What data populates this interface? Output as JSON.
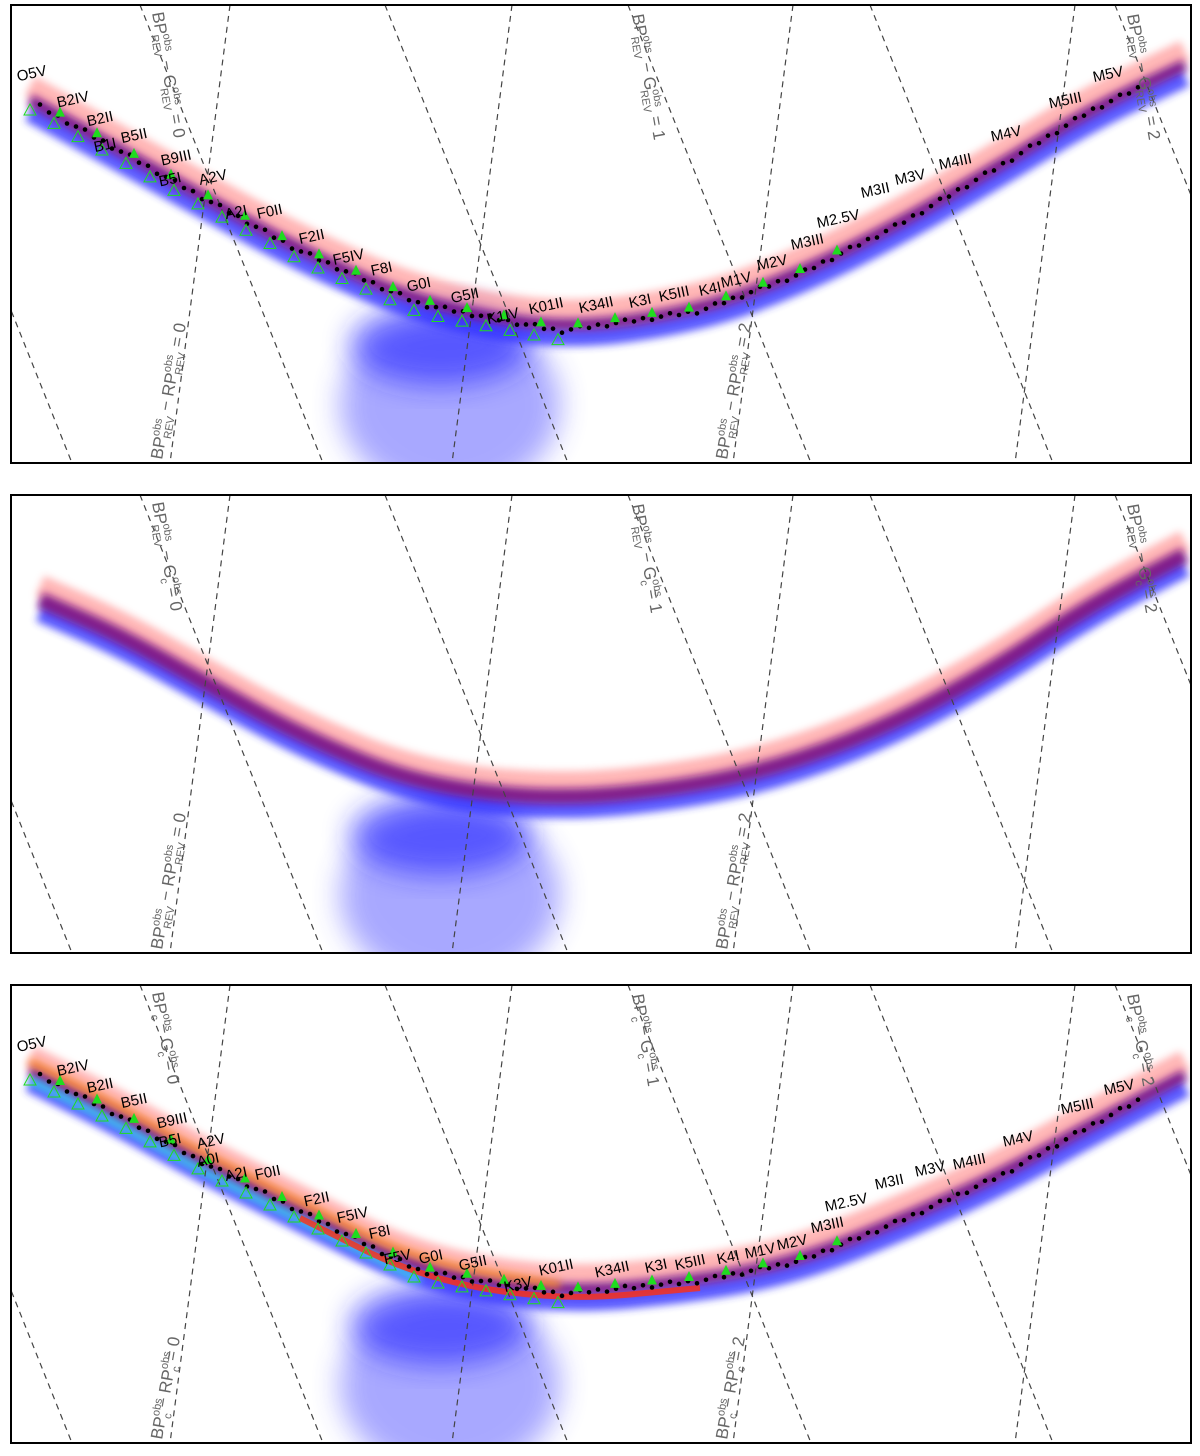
{
  "chart_data": [
    {
      "type": "scatter",
      "panel": "top",
      "title": "",
      "series": [
        {
          "name": "sources (red)",
          "color": "#ff6f6f"
        },
        {
          "name": "sources (blue)",
          "color": "#1a1aff"
        },
        {
          "name": "overlap",
          "color": "#800080"
        },
        {
          "name": "spectral standards",
          "color": "#000000"
        },
        {
          "name": "filled triangles",
          "color": "#1fdc1f"
        },
        {
          "name": "open triangles",
          "color": "#1fdc1f"
        }
      ],
      "line_labels": [
        {
          "parts": [
            "BP",
            "obs",
            "REV",
            " − G",
            "obs",
            "REV",
            " = 0"
          ]
        },
        {
          "parts": [
            "BP",
            "obs",
            "REV",
            " − G",
            "obs",
            "REV",
            " = 1"
          ]
        },
        {
          "parts": [
            "BP",
            "obs",
            "REV",
            " − G",
            "obs",
            "REV",
            " = 2"
          ]
        },
        {
          "parts": [
            "BP",
            "obs",
            "REV",
            " − RP",
            "obs",
            "REV",
            " = 0"
          ]
        },
        {
          "parts": [
            "BP",
            "obs",
            "REV",
            " − RP",
            "obs",
            "REV",
            " = 2"
          ]
        }
      ],
      "annotations": [
        "O5V",
        "B2IV",
        "B2II",
        "B1I",
        "B5II",
        "B9III",
        "B5I",
        "A2V",
        "A2I",
        "F0II",
        "F2II",
        "F5IV",
        "F8I",
        "G0I",
        "G5II",
        "K1IV",
        "K01II",
        "K34II",
        "K3I",
        "K5III",
        "K4I",
        "M1V",
        "M2V",
        "M3III",
        "M2.5V",
        "M3II",
        "M3V",
        "M4III",
        "M4V",
        "M5III",
        "M5V"
      ]
    },
    {
      "type": "scatter",
      "panel": "middle",
      "title": "",
      "series": [
        {
          "name": "sources (red)",
          "color": "#ff6f6f"
        },
        {
          "name": "sources (blue)",
          "color": "#1a1aff"
        },
        {
          "name": "overlap",
          "color": "#800080"
        }
      ],
      "line_labels": [
        {
          "parts": [
            "BP",
            "obs",
            "REV",
            " − G",
            "obs",
            "c",
            " = 0"
          ]
        },
        {
          "parts": [
            "BP",
            "obs",
            "REV",
            " − G",
            "obs",
            "c",
            " = 1"
          ]
        },
        {
          "parts": [
            "BP",
            "obs",
            "REV",
            " − G",
            "obs",
            "c",
            " = 2"
          ]
        },
        {
          "parts": [
            "BP",
            "obs",
            "REV",
            " − RP",
            "obs",
            "REV",
            " = 0"
          ]
        },
        {
          "parts": [
            "BP",
            "obs",
            "REV",
            " − RP",
            "obs",
            "REV",
            " = 2"
          ]
        }
      ],
      "annotations": []
    },
    {
      "type": "scatter",
      "panel": "bottom",
      "title": "",
      "series": [
        {
          "name": "sources (red)",
          "color": "#ff6f6f"
        },
        {
          "name": "sources (blue)",
          "color": "#1a1aff"
        },
        {
          "name": "overlap",
          "color": "#800080"
        },
        {
          "name": "orange points",
          "color": "#ff8c1a"
        },
        {
          "name": "cyan points",
          "color": "#33e6f0"
        },
        {
          "name": "spectral standards",
          "color": "#000000"
        },
        {
          "name": "filled triangles",
          "color": "#1fdc1f"
        },
        {
          "name": "open triangles",
          "color": "#1fdc1f"
        }
      ],
      "line_labels": [
        {
          "parts": [
            "BP",
            "obs",
            "c",
            " − G",
            "obs",
            "c",
            " = 0"
          ]
        },
        {
          "parts": [
            "BP",
            "obs",
            "c",
            " − G",
            "obs",
            "c",
            " = 1"
          ]
        },
        {
          "parts": [
            "BP",
            "obs",
            "c",
            " − G",
            "obs",
            "c",
            " = 2"
          ]
        },
        {
          "parts": [
            "BP",
            "obs",
            "c",
            " − RP",
            "obs",
            "c",
            " = 0"
          ]
        },
        {
          "parts": [
            "BP",
            "obs",
            "c",
            " − RP",
            "obs",
            "c",
            " = 2"
          ]
        }
      ],
      "annotations": [
        "O5V",
        "B2IV",
        "B2II",
        "B5II",
        "B9III",
        "B5I",
        "A2V",
        "A0I",
        "A2I",
        "F0II",
        "F2II",
        "F5IV",
        "F8I",
        "F5V",
        "G0I",
        "G5II",
        "K3V",
        "K01II",
        "K34II",
        "K3I",
        "K5III",
        "K4I",
        "M1V",
        "M2V",
        "M3III",
        "M2.5V",
        "M3II",
        "M3V",
        "M4III",
        "M4V",
        "M5III",
        "M5V"
      ]
    }
  ]
}
